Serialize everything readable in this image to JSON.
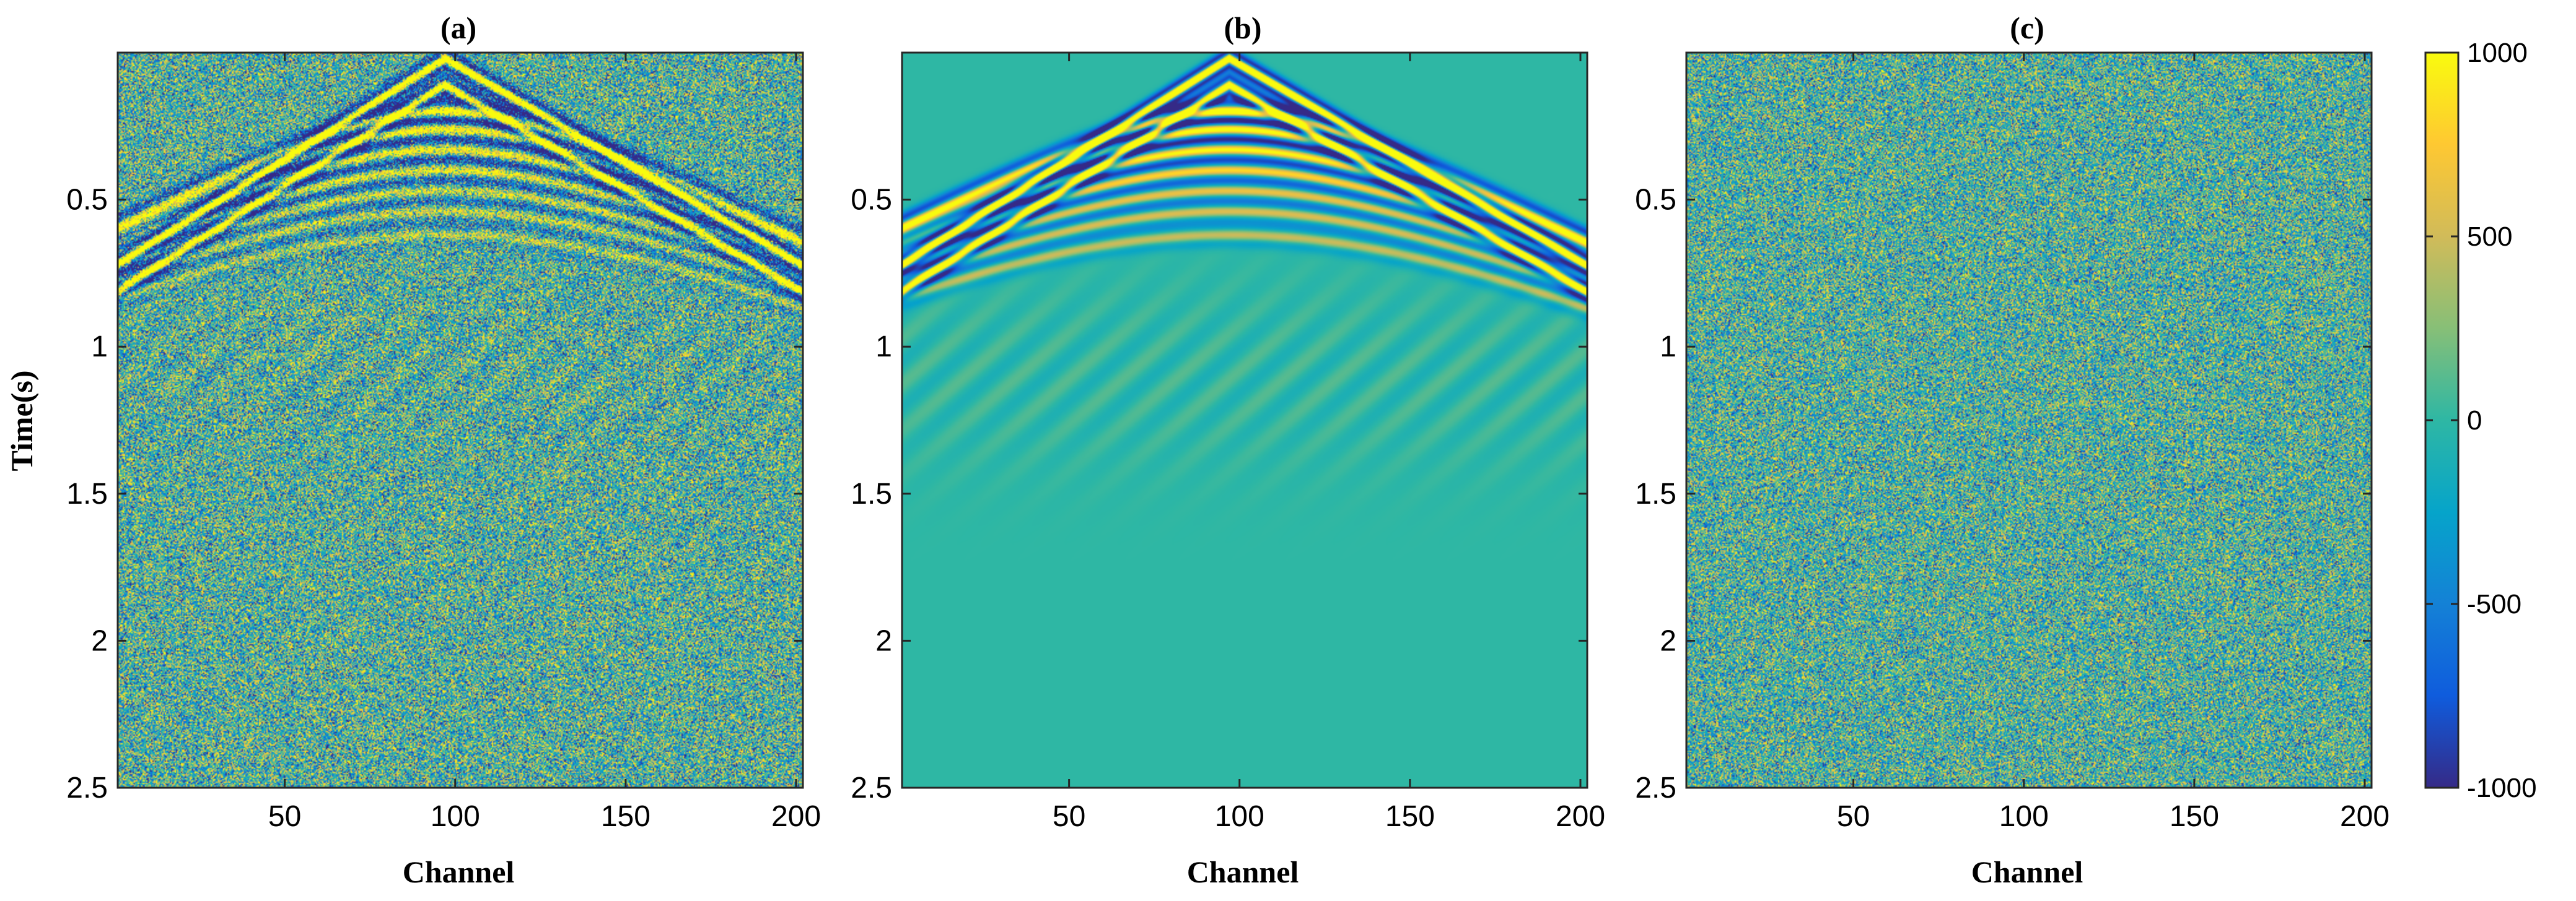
{
  "chart_data": [
    {
      "type": "heatmap",
      "title": "(a)",
      "content": "noisy",
      "xlabel": "Channel",
      "ylabel": "Time(s)",
      "xlim": [
        1,
        202
      ],
      "ylim": [
        0,
        2.5
      ],
      "x_ticks": [
        50,
        100,
        150,
        200
      ],
      "y_ticks": [
        0.5,
        1,
        1.5,
        2,
        2.5
      ],
      "apex_channel": 97,
      "apex_time": 0.0
    },
    {
      "type": "heatmap",
      "title": "(b)",
      "content": "denoised",
      "xlabel": "Channel",
      "ylabel": "",
      "xlim": [
        1,
        202
      ],
      "ylim": [
        0,
        2.5
      ],
      "x_ticks": [
        50,
        100,
        150,
        200
      ],
      "y_ticks": [
        0.5,
        1,
        1.5,
        2,
        2.5
      ],
      "apex_channel": 97,
      "apex_time": 0.0
    },
    {
      "type": "heatmap",
      "title": "(c)",
      "content": "residual",
      "xlabel": "Channel",
      "ylabel": "",
      "xlim": [
        1,
        202
      ],
      "ylim": [
        0,
        2.5
      ],
      "x_ticks": [
        50,
        100,
        150,
        200
      ],
      "y_ticks": [
        0.5,
        1,
        1.5,
        2,
        2.5
      ]
    }
  ],
  "colorbar": {
    "range": [
      -1000,
      1000
    ],
    "ticks": [
      1000,
      500,
      0,
      -500,
      -1000
    ],
    "tick_labels": [
      "1000",
      "500",
      "0",
      "-500",
      "-1000"
    ],
    "colormap": "parula",
    "stops": [
      "#352a87",
      "#0f5cdd",
      "#1481d6",
      "#06a4ca",
      "#2eb7a4",
      "#87bf77",
      "#d1bb59",
      "#fec832",
      "#f9fb0e"
    ]
  }
}
